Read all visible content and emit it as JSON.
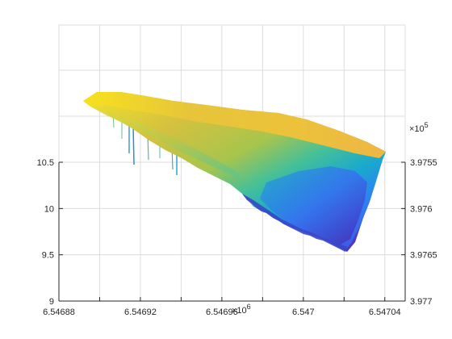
{
  "chart_data": {
    "type": "surface",
    "title": "",
    "xlabel": "",
    "ylabel": "",
    "zlabel": "",
    "x_axis": {
      "multiplier_base": "×10",
      "multiplier_exp": "6",
      "ticks": [
        6.54688,
        6.5469,
        6.54692,
        6.54694,
        6.54696,
        6.54698,
        6.547,
        6.54702,
        6.54704
      ],
      "tick_labels": [
        "6.54688",
        "",
        "6.54692",
        "",
        "6.54696",
        "",
        "6.547",
        "",
        "6.54704"
      ],
      "range": [
        6.54688,
        6.54705
      ]
    },
    "z_axis_left": {
      "ticks": [
        9,
        9.5,
        10,
        10.5
      ],
      "tick_labels": [
        "9",
        "9.5",
        "10",
        "10.5"
      ],
      "range": [
        9,
        10.5
      ]
    },
    "y_axis_right": {
      "multiplier_base": "×10",
      "multiplier_exp": "5",
      "ticks": [
        3.9755,
        3.976,
        3.9765,
        3.977
      ],
      "tick_labels": [
        "3.9755",
        "3.976",
        "3.9765",
        "3.977"
      ],
      "range": [
        3.9755,
        3.977
      ]
    },
    "grid": true,
    "colormap": "parula",
    "colors": [
      "#3e26a8",
      "#4653e0",
      "#2d84f3",
      "#17a8cc",
      "#2fbf9a",
      "#7fc75d",
      "#d2ba3c",
      "#fdd52c",
      "#f9fb0e"
    ]
  }
}
